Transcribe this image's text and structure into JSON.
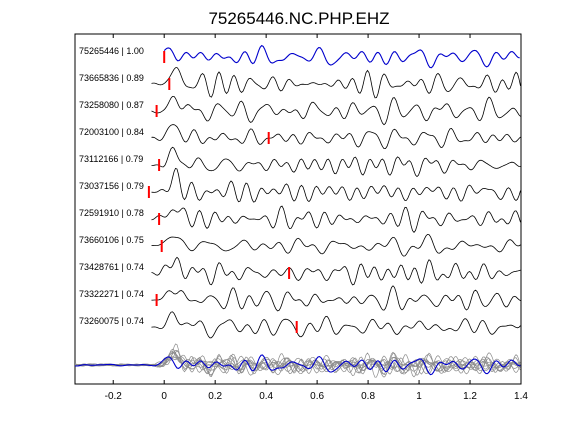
{
  "chart_data": {
    "type": "line",
    "title": "75265446.NC.PHP.EHZ",
    "xlabel": "",
    "ylabel": "",
    "xlim": [
      -0.35,
      1.4
    ],
    "xticks": [
      -0.2,
      0,
      0.2,
      0.4,
      0.6,
      0.8,
      1,
      1.2,
      1.4
    ],
    "xtick_labels": [
      "-0.2",
      "0",
      "0.2",
      "0.4",
      "0.6",
      "0.8",
      "1",
      "1.2",
      "1.4"
    ],
    "grid": false,
    "colors": {
      "reference": "#0000cc",
      "trace": "#000000",
      "pick": "#ff0000",
      "stack": "#8c8c8c"
    },
    "traces": [
      {
        "label": "75265446 | 1.00",
        "pick_time": 0.0,
        "reference": true
      },
      {
        "label": "73665836 | 0.89",
        "pick_time": 0.02
      },
      {
        "label": "73258080 | 0.87",
        "pick_time": -0.03
      },
      {
        "label": "72003100 | 0.84",
        "pick_time": 0.41
      },
      {
        "label": "73112166 | 0.79",
        "pick_time": -0.02
      },
      {
        "label": "73037156 | 0.79",
        "pick_time": -0.06
      },
      {
        "label": "72591910 | 0.78",
        "pick_time": -0.02
      },
      {
        "label": "73660106 | 0.75",
        "pick_time": -0.01
      },
      {
        "label": "73428761 | 0.74",
        "pick_time": 0.49
      },
      {
        "label": "73322271 | 0.74",
        "pick_time": -0.03
      },
      {
        "label": "73260075 | 0.74",
        "pick_time": 0.52
      }
    ]
  }
}
